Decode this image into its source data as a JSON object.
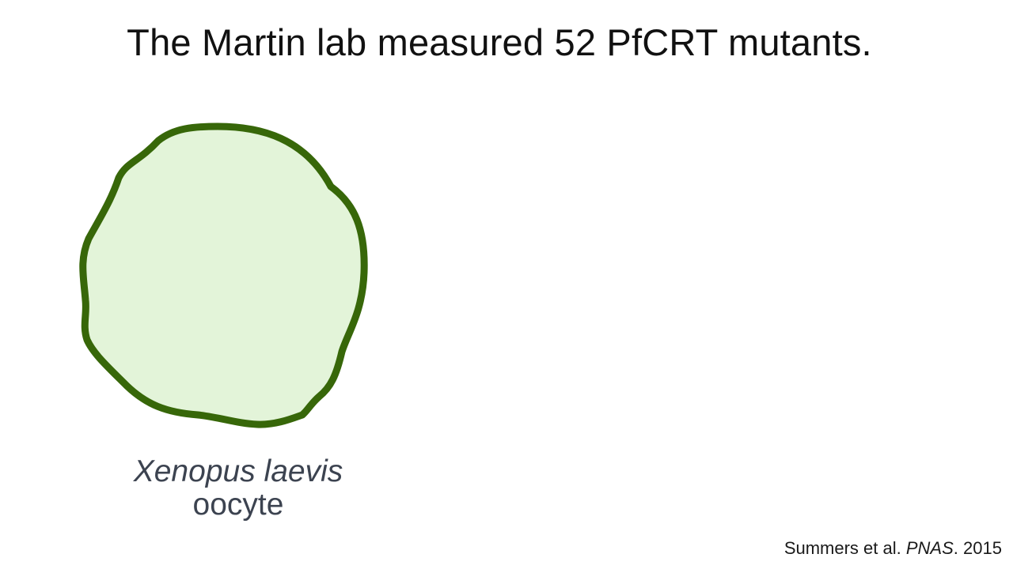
{
  "title": "The Martin lab measured 52 PfCRT mutants.",
  "oocyte": {
    "species": "Xenopus laevis",
    "cell_type": "oocyte",
    "fill_color": "#e3f4d9",
    "stroke_color": "#376709"
  },
  "citation": {
    "authors": "Summers et al.",
    "journal": "PNAS",
    "year": "2015"
  }
}
